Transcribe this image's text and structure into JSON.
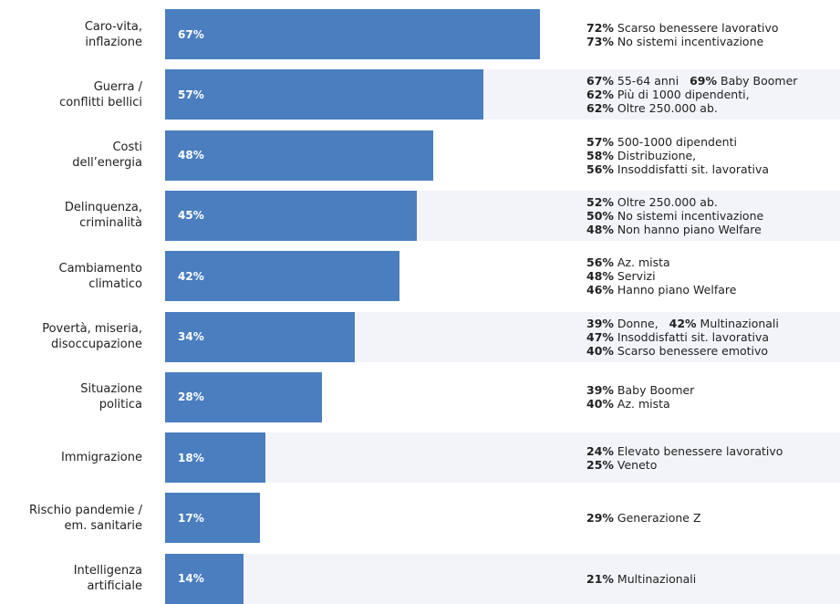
{
  "chart_data": {
    "type": "bar",
    "orientation": "horizontal",
    "color": "#4a7ebf",
    "band_color": "#f2f4f9",
    "categories": [
      "Caro-vita,\ninflazione",
      "Guerra /\nconflitti bellici",
      "Costi\ndell’energia",
      "Delinquenza,\ncriminalità",
      "Cambiamento\nclimatico",
      "Povertà, miseria,\ndisoccupazione",
      "Situazione\npolitica",
      "Immigrazione",
      "Rischio pandemie /\nem. sanitarie",
      "Intelligenza\nartificiale"
    ],
    "values": [
      67,
      57,
      48,
      45,
      42,
      34,
      28,
      18,
      17,
      14
    ],
    "value_labels": [
      "67%",
      "57%",
      "48%",
      "45%",
      "42%",
      "34%",
      "28%",
      "18%",
      "17%",
      "14%"
    ],
    "annotations": [
      [
        [
          {
            "pct": "72%",
            "text": "Scarso benessere lavorativo"
          }
        ],
        [
          {
            "pct": "73%",
            "text": "No sistemi incentivazione"
          }
        ]
      ],
      [
        [
          {
            "pct": "67%",
            "text": "55-64 anni"
          },
          {
            "pct": "69%",
            "text": "Baby Boomer"
          }
        ],
        [
          {
            "pct": "62%",
            "text": "Più di 1000 dipendenti,"
          }
        ],
        [
          {
            "pct": "62%",
            "text": "Oltre 250.000 ab."
          }
        ]
      ],
      [
        [
          {
            "pct": "57%",
            "text": "500-1000 dipendenti"
          }
        ],
        [
          {
            "pct": "58%",
            "text": "Distribuzione,"
          }
        ],
        [
          {
            "pct": "56%",
            "text": "Insoddisfatti sit. lavorativa"
          }
        ]
      ],
      [
        [
          {
            "pct": "52%",
            "text": "Oltre 250.000 ab."
          }
        ],
        [
          {
            "pct": "50%",
            "text": "No sistemi incentivazione"
          }
        ],
        [
          {
            "pct": "48%",
            "text": "Non hanno piano Welfare"
          }
        ]
      ],
      [
        [
          {
            "pct": "56%",
            "text": "Az. mista"
          }
        ],
        [
          {
            "pct": "48%",
            "text": "Servizi"
          }
        ],
        [
          {
            "pct": "46%",
            "text": "Hanno piano Welfare"
          }
        ]
      ],
      [
        [
          {
            "pct": "39%",
            "text": "Donne,"
          },
          {
            "pct": "42%",
            "text": "Multinazionali"
          }
        ],
        [
          {
            "pct": "47%",
            "text": "Insoddisfatti sit. lavorativa"
          }
        ],
        [
          {
            "pct": "40%",
            "text": "Scarso benessere emotivo"
          }
        ]
      ],
      [
        [
          {
            "pct": "39%",
            "text": "Baby Boomer"
          }
        ],
        [
          {
            "pct": "40%",
            "text": "Az. mista"
          }
        ]
      ],
      [
        [
          {
            "pct": "24%",
            "text": "Elevato benessere lavorativo"
          }
        ],
        [
          {
            "pct": "25%",
            "text": "Veneto"
          }
        ]
      ],
      [
        [
          {
            "pct": "29%",
            "text": "Generazione Z"
          }
        ]
      ],
      [
        [
          {
            "pct": "21%",
            "text": "Multinazionali"
          }
        ]
      ]
    ]
  }
}
